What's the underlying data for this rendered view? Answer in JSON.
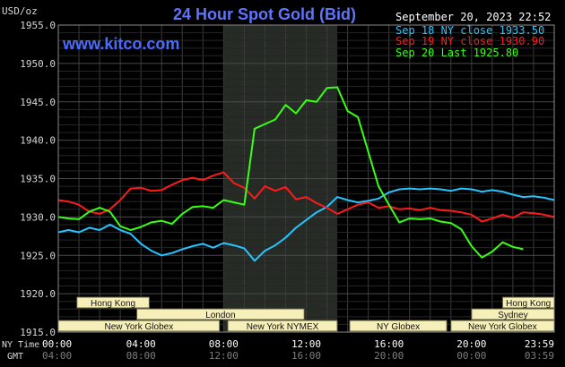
{
  "header": {
    "title": "24 Hour Spot Gold (Bid)",
    "unit": "USD/oz",
    "website": "www.kitco.com",
    "timestamp": "September 20, 2023 22:52"
  },
  "colors": {
    "background": "#000000",
    "grid": "#404040",
    "title": "#5d74ff",
    "sep18": "#27c4ff",
    "sep19": "#ff1a1a",
    "sep20": "#39ff14",
    "shade": "#262b26",
    "box_fill": "#f6efb9"
  },
  "legend": {
    "placement": "top-right",
    "items": [
      {
        "label": "Sep 18 NY close 1933.50",
        "color": "#27c4ff"
      },
      {
        "label": "Sep 19 NY close 1930.90",
        "color": "#ff1a1a"
      },
      {
        "label": "Sep 20 Last 1925.80",
        "color": "#39ff14"
      }
    ]
  },
  "axis_labels": {
    "ny_time": "NY Time",
    "gmt": "GMT"
  },
  "sessions": [
    {
      "label": "Hong Kong",
      "start": 0.9,
      "end": 4.4
    },
    {
      "label": "Hong Kong",
      "start": 21.5,
      "end": 24.0
    },
    {
      "label": "London",
      "start": 3.8,
      "end": 11.9
    },
    {
      "label": "Sydney",
      "start": 20.0,
      "end": 24.0
    },
    {
      "label": "New York Globex",
      "start": 0.0,
      "end": 7.8
    },
    {
      "label": "New York NYMEX",
      "start": 8.2,
      "end": 13.5
    },
    {
      "label": "NY Globex",
      "start": 14.1,
      "end": 18.8
    },
    {
      "label": "New York Globex",
      "start": 19.0,
      "end": 24.0
    }
  ],
  "chart_data": {
    "type": "line",
    "title": "24 Hour Spot Gold (Bid)",
    "ylabel": "USD/oz",
    "xlabel": "NY Time",
    "ylim": [
      1915,
      1955
    ],
    "xlim": [
      0,
      24
    ],
    "yticks": [
      1915.0,
      1920.0,
      1925.0,
      1930.0,
      1935.0,
      1940.0,
      1945.0,
      1950.0,
      1955.0
    ],
    "xticks_ny": [
      "00:00",
      "04:00",
      "08:00",
      "12:00",
      "16:00",
      "20:00",
      "23:59"
    ],
    "xticks_gmt": [
      "04:00",
      "08:00",
      "12:00",
      "16:00",
      "20:00",
      "00:00",
      "03:59"
    ],
    "grid": true,
    "shaded_region": {
      "start": 8.0,
      "end": 13.5
    },
    "series": [
      {
        "name": "Sep 18 NY close 1933.50",
        "color": "#27c4ff",
        "x": [
          0,
          0.5,
          1,
          1.5,
          2,
          2.5,
          3,
          3.5,
          4,
          4.5,
          5,
          5.5,
          6,
          6.5,
          7,
          7.5,
          8,
          8.5,
          9,
          9.5,
          10,
          10.5,
          11,
          11.5,
          12,
          12.5,
          13,
          13.5,
          14,
          14.5,
          15,
          15.5,
          16,
          16.5,
          17,
          17.5,
          18,
          18.5,
          19,
          19.5,
          20,
          20.5,
          21,
          21.5,
          22,
          22.5,
          23,
          23.5,
          24
        ],
        "values": [
          1928.0,
          1928.3,
          1928.0,
          1928.6,
          1928.3,
          1929.0,
          1928.3,
          1927.8,
          1926.5,
          1925.6,
          1925.0,
          1925.3,
          1925.8,
          1926.2,
          1926.5,
          1926.0,
          1926.6,
          1926.3,
          1925.9,
          1924.3,
          1925.6,
          1926.3,
          1927.3,
          1928.6,
          1929.6,
          1930.6,
          1931.3,
          1932.6,
          1932.2,
          1931.9,
          1932.1,
          1932.4,
          1933.2,
          1933.6,
          1933.7,
          1933.6,
          1933.7,
          1933.6,
          1933.4,
          1933.7,
          1933.6,
          1933.3,
          1933.5,
          1933.3,
          1932.9,
          1932.6,
          1932.7,
          1932.5,
          1932.2
        ]
      },
      {
        "name": "Sep 19 NY close 1930.90",
        "color": "#ff1a1a",
        "x": [
          0,
          0.5,
          1,
          1.5,
          2,
          2.5,
          3,
          3.5,
          4,
          4.5,
          5,
          5.5,
          6,
          6.5,
          7,
          7.5,
          8,
          8.5,
          9,
          9.5,
          10,
          10.5,
          11,
          11.5,
          12,
          12.5,
          13,
          13.5,
          14,
          14.5,
          15,
          15.5,
          16,
          16.5,
          17,
          17.5,
          18,
          18.5,
          19,
          19.5,
          20,
          20.5,
          21,
          21.5,
          22,
          22.5,
          23,
          23.5,
          24
        ],
        "values": [
          1932.2,
          1932.0,
          1931.6,
          1930.7,
          1930.4,
          1931.0,
          1932.2,
          1933.7,
          1933.8,
          1933.4,
          1933.5,
          1934.2,
          1934.8,
          1935.1,
          1934.8,
          1935.4,
          1935.8,
          1934.4,
          1933.8,
          1932.4,
          1934.0,
          1933.4,
          1933.9,
          1932.3,
          1932.6,
          1931.8,
          1931.2,
          1930.4,
          1931.0,
          1931.6,
          1931.9,
          1931.2,
          1931.4,
          1931.0,
          1931.1,
          1930.9,
          1931.2,
          1930.9,
          1930.8,
          1930.6,
          1930.3,
          1929.4,
          1929.8,
          1930.3,
          1929.9,
          1930.6,
          1930.5,
          1930.3,
          1930.0
        ]
      },
      {
        "name": "Sep 20 Last 1925.80",
        "color": "#39ff14",
        "x": [
          0,
          0.5,
          1,
          1.5,
          2,
          2.5,
          3,
          3.5,
          4,
          4.5,
          5,
          5.5,
          6,
          6.5,
          7,
          7.5,
          8,
          8.5,
          9,
          9.5,
          10,
          10.5,
          11,
          11.5,
          12,
          12.5,
          13,
          13.5,
          14,
          14.5,
          15,
          15.5,
          16,
          16.5,
          17,
          17.5,
          18,
          18.5,
          19,
          19.5,
          20,
          20.5,
          21,
          21.5,
          22,
          22.5
        ],
        "values": [
          1930.0,
          1929.8,
          1929.7,
          1930.7,
          1931.2,
          1930.7,
          1928.8,
          1928.3,
          1928.7,
          1929.3,
          1929.5,
          1929.1,
          1930.4,
          1931.3,
          1931.4,
          1931.2,
          1932.2,
          1931.9,
          1931.6,
          1941.5,
          1942.1,
          1942.7,
          1944.6,
          1943.5,
          1945.2,
          1945.0,
          1946.8,
          1946.9,
          1943.8,
          1943.0,
          1938.5,
          1934.0,
          1931.6,
          1929.3,
          1929.8,
          1929.7,
          1929.8,
          1929.4,
          1929.2,
          1928.4,
          1926.2,
          1924.7,
          1925.5,
          1926.7,
          1926.1,
          1925.8
        ]
      }
    ]
  }
}
